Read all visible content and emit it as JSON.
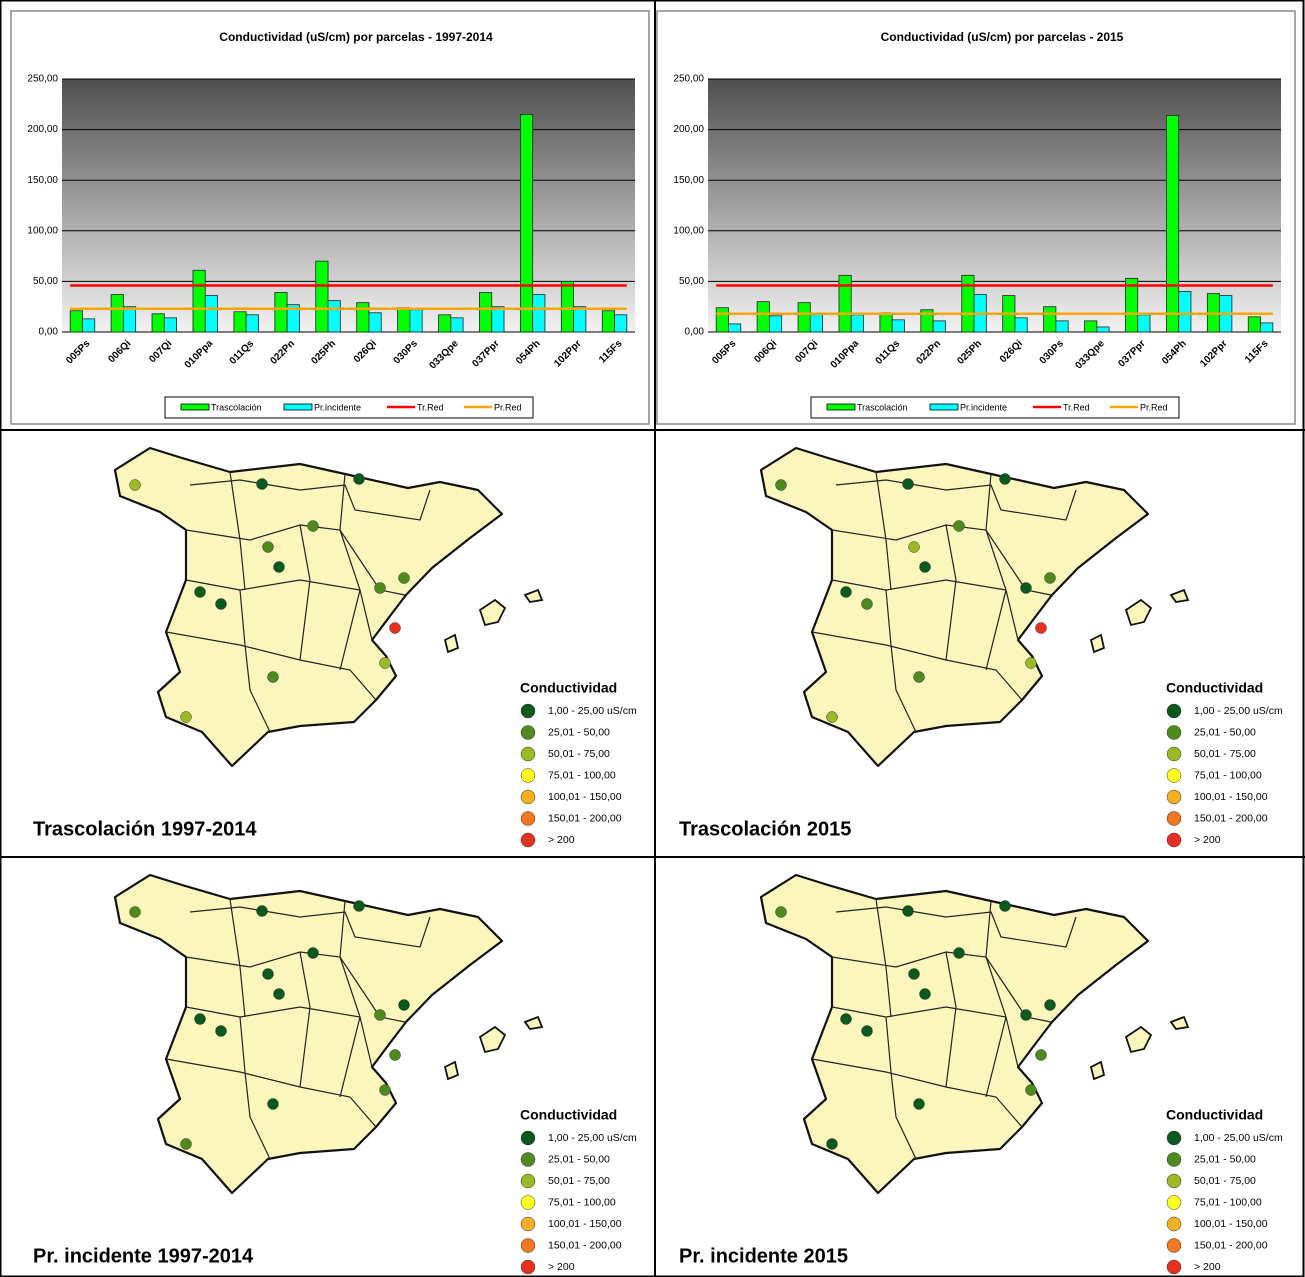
{
  "chart_data": [
    {
      "type": "bar",
      "title": "Conductividad (uS/cm) por parcelas - 1997-2014",
      "categories": [
        "005Ps",
        "006Qi",
        "007Qi",
        "010Ppa",
        "011Qs",
        "022Pn",
        "025Ph",
        "026Qi",
        "030Ps",
        "033Qpe",
        "037Ppr",
        "054Ph",
        "102Ppr",
        "115Fs"
      ],
      "series": [
        {
          "name": "Trascolación",
          "color": "#00ff00",
          "values": [
            21,
            37,
            18,
            61,
            20,
            39,
            70,
            29,
            24,
            17,
            39,
            215,
            50,
            21
          ]
        },
        {
          "name": "Pr.incidente",
          "color": "#00ffff",
          "values": [
            13,
            25,
            14,
            36,
            17,
            27,
            31,
            19,
            22,
            14,
            25,
            37,
            25,
            17
          ]
        }
      ],
      "lines": [
        {
          "name": "Tr.Red",
          "color": "#ff0000",
          "value": 46
        },
        {
          "name": "Pr.Red",
          "color": "#ffa500",
          "value": 23
        }
      ],
      "ylim": [
        0,
        250
      ],
      "yticks": [
        {
          "value": 0,
          "label": "0,00"
        },
        {
          "value": 50,
          "label": "50,00"
        },
        {
          "value": 100,
          "label": "100,00"
        },
        {
          "value": 150,
          "label": "150,00"
        },
        {
          "value": 200,
          "label": "200,00"
        },
        {
          "value": 250,
          "label": "250,00"
        }
      ],
      "grid": true,
      "legend": "bottom"
    },
    {
      "type": "bar",
      "title": "Conductividad (uS/cm) por parcelas - 2015",
      "categories": [
        "005Ps",
        "006Qi",
        "007Qi",
        "010Ppa",
        "011Qs",
        "022Pn",
        "025Ph",
        "026Qi",
        "030Ps",
        "033Qpe",
        "037Ppr",
        "054Ph",
        "102Ppr",
        "115Fs"
      ],
      "series": [
        {
          "name": "Trascolación",
          "color": "#00ff00",
          "values": [
            24,
            30,
            29,
            56,
            19,
            22,
            56,
            36,
            25,
            11,
            53,
            214,
            38,
            15
          ]
        },
        {
          "name": "Pr.incidente",
          "color": "#00ffff",
          "values": [
            8,
            16,
            18,
            17,
            12,
            11,
            37,
            14,
            11,
            5,
            17,
            40,
            36,
            9
          ]
        }
      ],
      "lines": [
        {
          "name": "Tr.Red",
          "color": "#ff0000",
          "value": 46
        },
        {
          "name": "Pr.Red",
          "color": "#ffa500",
          "value": 18
        }
      ],
      "ylim": [
        0,
        250
      ],
      "yticks": [
        {
          "value": 0,
          "label": "0,00"
        },
        {
          "value": 50,
          "label": "50,00"
        },
        {
          "value": 100,
          "label": "100,00"
        },
        {
          "value": 150,
          "label": "150,00"
        },
        {
          "value": 200,
          "label": "200,00"
        },
        {
          "value": 250,
          "label": "250,00"
        }
      ],
      "grid": true,
      "legend": "bottom"
    }
  ],
  "map_legend": {
    "title": "Conductividad",
    "labels": [
      "1,00 - 25,00 uS/cm",
      "25,01 - 50,00",
      "50,01 - 75,00",
      "75,01 - 100,00",
      "100,01 - 150,00",
      "150,01 - 200,00",
      "> 200"
    ],
    "colors": [
      "#0a5a1e",
      "#4e8a1c",
      "#9cba28",
      "#ffff20",
      "#f5b020",
      "#f07820",
      "#e83020"
    ]
  },
  "maps": [
    {
      "title": "Trascolación 1997-2014",
      "classes": [
        2,
        0,
        0,
        1,
        1,
        0,
        0,
        0,
        1,
        1,
        6,
        2,
        1,
        2
      ]
    },
    {
      "title": "Trascolación 2015",
      "classes": [
        1,
        0,
        0,
        1,
        2,
        0,
        0,
        1,
        0,
        1,
        6,
        2,
        1,
        2
      ]
    },
    {
      "title": "Pr. incidente 1997-2014",
      "classes": [
        1,
        0,
        0,
        0,
        0,
        0,
        0,
        0,
        1,
        0,
        1,
        1,
        0,
        1
      ]
    },
    {
      "title": "Pr. incidente 2015",
      "classes": [
        1,
        0,
        0,
        0,
        0,
        0,
        0,
        0,
        0,
        0,
        1,
        1,
        0,
        0
      ]
    }
  ]
}
